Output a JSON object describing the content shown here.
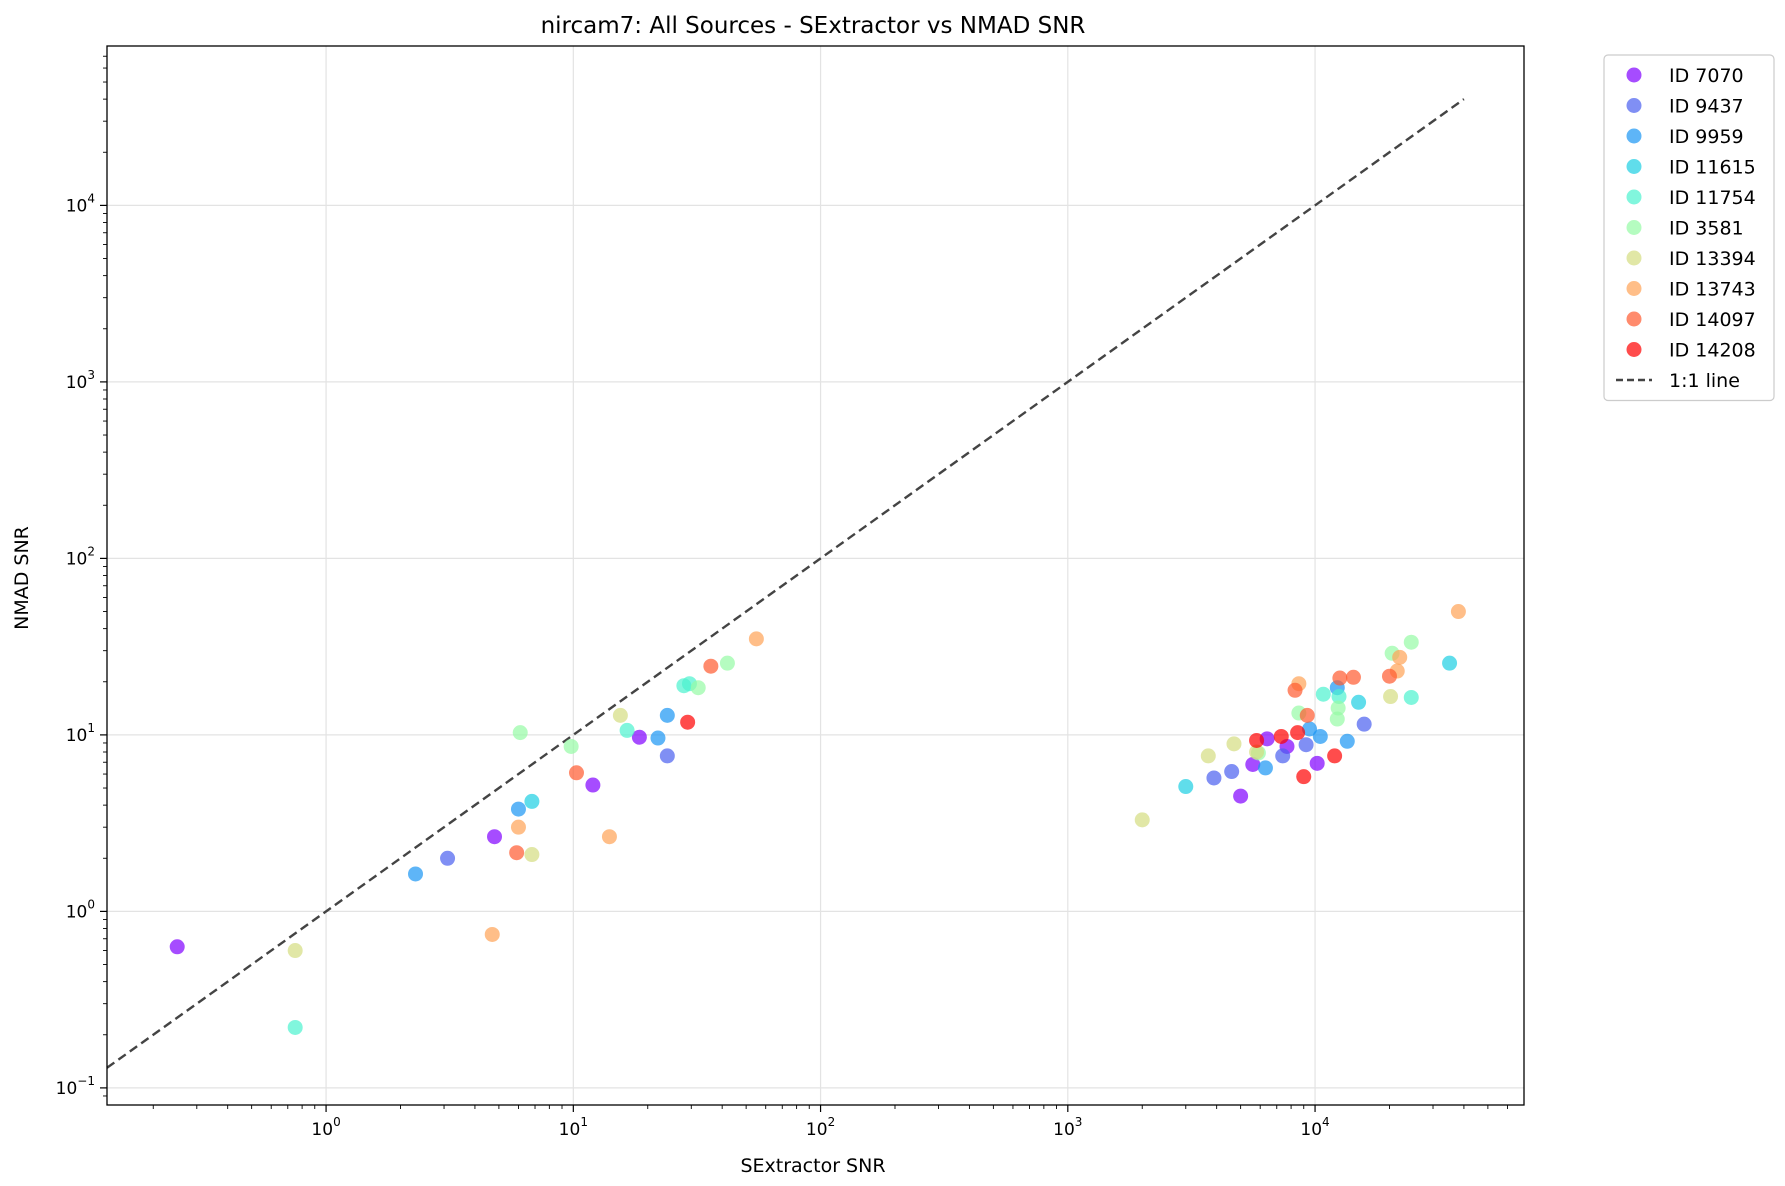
{
  "chart_data": {
    "type": "scatter",
    "title": "nircam7: All Sources - SExtractor vs NMAD SNR",
    "xlabel": "SExtractor SNR",
    "ylabel": "NMAD SNR",
    "xscale": "log",
    "yscale": "log",
    "xlim": [
      0.13,
      70000
    ],
    "ylim": [
      0.08,
      80000
    ],
    "grid": true,
    "legend_position": "outside-top-right",
    "x_ticks": [
      {
        "value": 1,
        "base": "10",
        "exp": "0"
      },
      {
        "value": 10,
        "base": "10",
        "exp": "1"
      },
      {
        "value": 100,
        "base": "10",
        "exp": "2"
      },
      {
        "value": 1000,
        "base": "10",
        "exp": "3"
      },
      {
        "value": 10000,
        "base": "10",
        "exp": "4"
      }
    ],
    "y_ticks": [
      {
        "value": 0.1,
        "base": "10",
        "exp": "−1"
      },
      {
        "value": 1,
        "base": "10",
        "exp": "0"
      },
      {
        "value": 10,
        "base": "10",
        "exp": "1"
      },
      {
        "value": 100,
        "base": "10",
        "exp": "2"
      },
      {
        "value": 1000,
        "base": "10",
        "exp": "3"
      },
      {
        "value": 10000,
        "base": "10",
        "exp": "4"
      }
    ],
    "reference_line": {
      "name": "1:1 line",
      "x": [
        0.13,
        40000
      ],
      "y": [
        0.13,
        40000
      ],
      "color": "#444444",
      "style": "dashed"
    },
    "series": [
      {
        "name": "ID 7070",
        "color": "#8000ff",
        "points": [
          [
            0.25,
            0.63
          ],
          [
            4.8,
            2.65
          ],
          [
            12,
            5.2
          ],
          [
            18.5,
            9.7
          ],
          [
            5000,
            4.5
          ],
          [
            5600,
            6.8
          ],
          [
            6400,
            9.5
          ],
          [
            7700,
            8.6
          ],
          [
            10200,
            6.9
          ]
        ]
      },
      {
        "name": "ID 9437",
        "color": "#4a5ff0",
        "points": [
          [
            3.1,
            2.0
          ],
          [
            24,
            7.6
          ],
          [
            3900,
            5.7
          ],
          [
            4600,
            6.2
          ],
          [
            7400,
            7.6
          ],
          [
            9200,
            8.8
          ],
          [
            15800,
            11.5
          ]
        ]
      },
      {
        "name": "ID 9959",
        "color": "#1996f3",
        "points": [
          [
            2.3,
            1.63
          ],
          [
            6.0,
            3.8
          ],
          [
            22,
            9.6
          ],
          [
            24,
            12.9
          ],
          [
            6300,
            6.5
          ],
          [
            9500,
            10.8
          ],
          [
            10500,
            9.8
          ],
          [
            12300,
            18.5
          ],
          [
            13500,
            9.2
          ]
        ]
      },
      {
        "name": "ID 11615",
        "color": "#1ccfe2",
        "points": [
          [
            6.8,
            4.2
          ],
          [
            3000,
            5.1
          ],
          [
            15000,
            15.3
          ],
          [
            35000,
            25.5
          ]
        ]
      },
      {
        "name": "ID 11754",
        "color": "#4cf2ce",
        "points": [
          [
            0.75,
            0.22
          ],
          [
            16.5,
            10.6
          ],
          [
            28,
            19
          ],
          [
            29.5,
            19.5
          ],
          [
            10800,
            17
          ],
          [
            12500,
            16.5
          ],
          [
            24500,
            16.3
          ]
        ]
      },
      {
        "name": "ID 3581",
        "color": "#95fba5",
        "points": [
          [
            6.1,
            10.3
          ],
          [
            9.8,
            8.6
          ],
          [
            32,
            18.5
          ],
          [
            42,
            25.5
          ],
          [
            5900,
            7.9
          ],
          [
            8600,
            13.3
          ],
          [
            12300,
            12.3
          ],
          [
            12400,
            14.2
          ],
          [
            20500,
            29
          ],
          [
            24500,
            33.5
          ]
        ]
      },
      {
        "name": "ID 13394",
        "color": "#d4dd80",
        "points": [
          [
            0.75,
            0.6
          ],
          [
            6.8,
            2.1
          ],
          [
            15.5,
            12.9
          ],
          [
            2000,
            3.3
          ],
          [
            3700,
            7.6
          ],
          [
            4700,
            8.9
          ],
          [
            5800,
            8.0
          ],
          [
            20200,
            16.5
          ]
        ]
      },
      {
        "name": "ID 13743",
        "color": "#ffa256",
        "points": [
          [
            4.7,
            0.74
          ],
          [
            6.0,
            3.0
          ],
          [
            14,
            2.65
          ],
          [
            55,
            35
          ],
          [
            8600,
            19.5
          ],
          [
            21500,
            23
          ],
          [
            22000,
            27.5
          ],
          [
            38000,
            50
          ]
        ]
      },
      {
        "name": "ID 14097",
        "color": "#ff5a2f",
        "points": [
          [
            5.9,
            2.15
          ],
          [
            10.3,
            6.1
          ],
          [
            36,
            24.5
          ],
          [
            8300,
            17.9
          ],
          [
            9300,
            12.9
          ],
          [
            12600,
            21
          ],
          [
            14300,
            21.2
          ],
          [
            20000,
            21.5
          ]
        ]
      },
      {
        "name": "ID 14208",
        "color": "#ff0000",
        "points": [
          [
            29,
            11.8
          ],
          [
            5800,
            9.3
          ],
          [
            7300,
            9.8
          ],
          [
            8500,
            10.3
          ],
          [
            9000,
            5.8
          ],
          [
            12000,
            7.6
          ]
        ]
      }
    ]
  }
}
